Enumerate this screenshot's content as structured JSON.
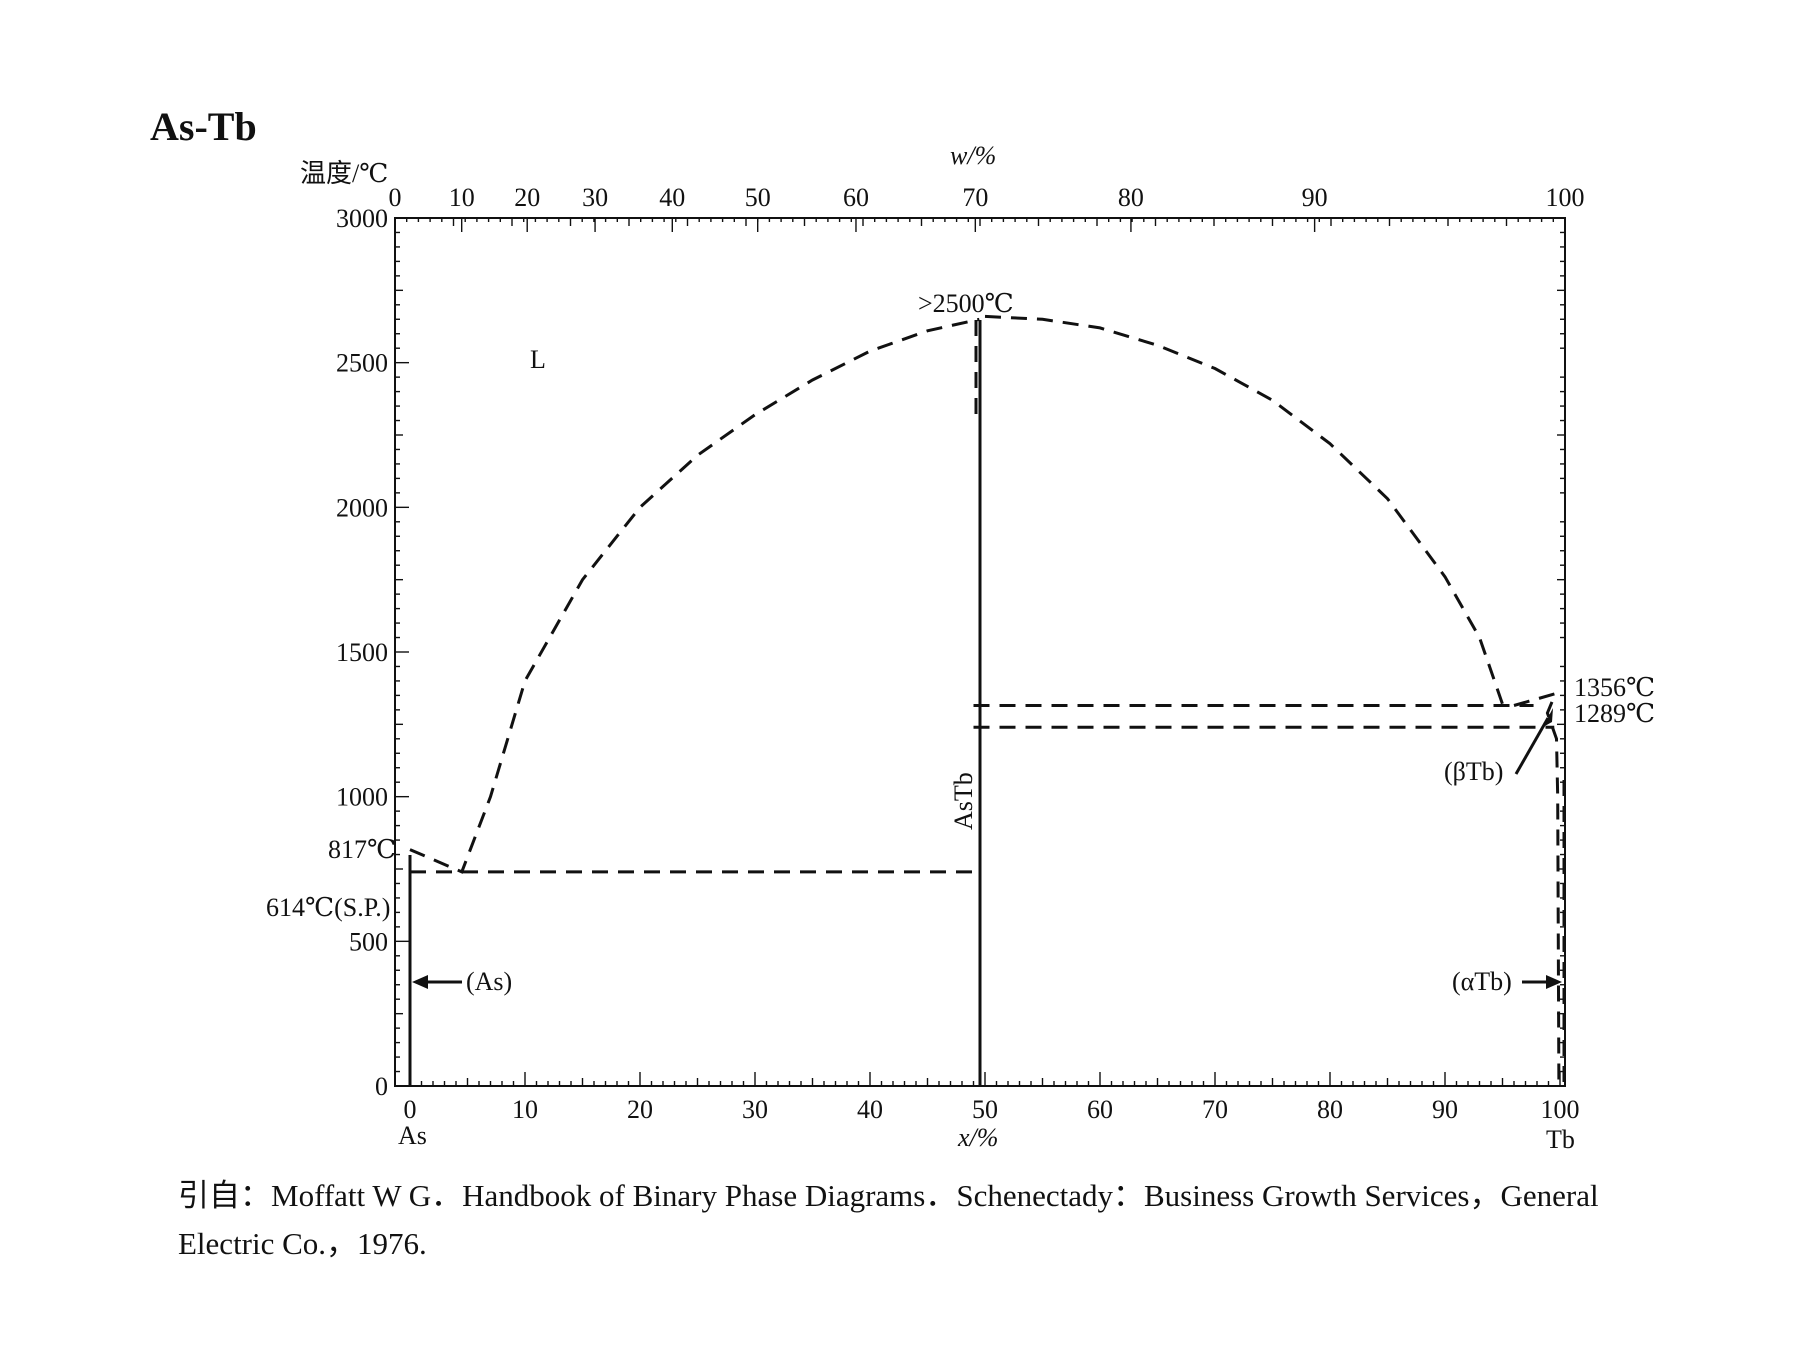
{
  "chart_data": {
    "type": "phase-diagram",
    "title": "As-Tb",
    "ylabel": "温度/℃",
    "xlabel": "x/%",
    "top_axis_label": "w/%",
    "ylim": [
      0,
      3000
    ],
    "xlim": [
      0,
      100
    ],
    "y_ticks": [
      0,
      500,
      1000,
      1500,
      2000,
      2500,
      3000
    ],
    "y_tick_labels": [
      "0",
      "500",
      "1000",
      "1500",
      "2000",
      "2500",
      "3000"
    ],
    "x_ticks": [
      0,
      10,
      20,
      30,
      40,
      50,
      60,
      70,
      80,
      90,
      100
    ],
    "x_tick_labels": [
      "0",
      "10",
      "20",
      "30",
      "40",
      "50",
      "60",
      "70",
      "80",
      "90",
      "100"
    ],
    "top_ticks_at_x": [
      0,
      5.7,
      11.3,
      17.1,
      23.7,
      31.0,
      39.4,
      49.6,
      62.9,
      78.6,
      100
    ],
    "top_tick_labels": [
      "0",
      "10",
      "20",
      "30",
      "40",
      "50",
      "60",
      "70",
      "80",
      "90",
      "100"
    ],
    "left_element": "As",
    "right_element": "Tb",
    "compound": {
      "label": "AsTb",
      "x": 50
    },
    "liquidus_left": [
      [
        0,
        817
      ],
      [
        4.5,
        740
      ],
      [
        7,
        1000
      ],
      [
        10,
        1400
      ],
      [
        15,
        1750
      ],
      [
        20,
        2000
      ],
      [
        25,
        2180
      ],
      [
        30,
        2320
      ],
      [
        35,
        2440
      ],
      [
        40,
        2540
      ],
      [
        45,
        2610
      ],
      [
        49.5,
        2650
      ]
    ],
    "liquidus_right": [
      [
        50,
        2660
      ],
      [
        55,
        2650
      ],
      [
        60,
        2620
      ],
      [
        65,
        2560
      ],
      [
        70,
        2480
      ],
      [
        75,
        2370
      ],
      [
        80,
        2220
      ],
      [
        85,
        2030
      ],
      [
        90,
        1760
      ],
      [
        93,
        1550
      ],
      [
        95,
        1320
      ]
    ],
    "eutectic_left": {
      "temperature": 740,
      "x_from": 0,
      "x_to": 49
    },
    "eutectic_right": {
      "temperature": 1315,
      "x_from": 49,
      "x_to": 97.7
    },
    "monotectoid_right": {
      "temperature": 1240,
      "x_from": 49,
      "x_to": 99.5
    },
    "tb_region": [
      [
        96,
        1315
      ],
      [
        99.6,
        1356
      ],
      [
        98.9,
        1289
      ],
      [
        99.7,
        1200
      ],
      [
        99.8,
        1000
      ],
      [
        99.9,
        0
      ]
    ],
    "annotations": {
      "liquid": "L",
      "max_temp": ">2500℃",
      "as_melt": "817℃",
      "as_sp": "614℃(S.P.)",
      "as_phase": "(As)",
      "tb_melt": "1356℃",
      "tb_transition": "1289℃",
      "beta_tb": "(βTb)",
      "alpha_tb": "(αTb)"
    }
  },
  "caption": {
    "line1": "引自：Moffatt W G．Handbook of Binary Phase Diagrams．Schenectady：Business Growth Services，General",
    "line2": "Electric Co.，1976."
  }
}
